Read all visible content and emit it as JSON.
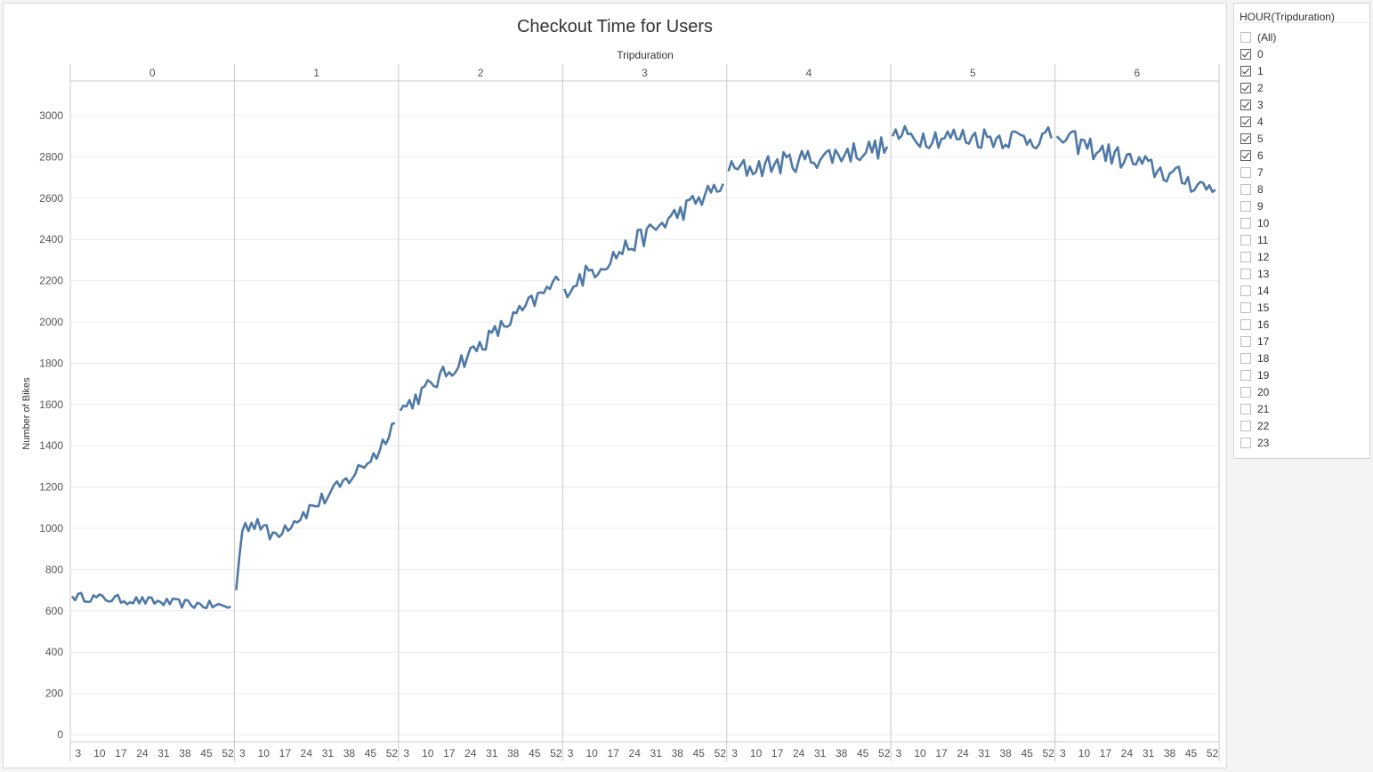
{
  "chart_data": {
    "type": "line",
    "title": "Checkout Time for Users",
    "column_header": "Tripduration",
    "ylabel": "Number of Bikes",
    "ylim": [
      0,
      3000
    ],
    "y_ticks": [
      0,
      200,
      400,
      600,
      800,
      1000,
      1200,
      1400,
      1600,
      1800,
      2000,
      2200,
      2400,
      2600,
      2800,
      3000
    ],
    "x_tick_labels": [
      "3",
      "10",
      "17",
      "24",
      "31",
      "38",
      "45",
      "52"
    ],
    "grid": true,
    "line_color": "#4e79a7",
    "panels": [
      {
        "label": "0",
        "start": 670,
        "end": 620,
        "noise": 22
      },
      {
        "label": "1",
        "start": 710,
        "end": 1510,
        "noise": 40,
        "anchors": [
          [
            1,
            700
          ],
          [
            3,
            1000
          ],
          [
            8,
            1040
          ],
          [
            12,
            960
          ],
          [
            20,
            1040
          ],
          [
            35,
            1200
          ],
          [
            48,
            1380
          ],
          [
            52,
            1510
          ],
          [
            60,
            1510
          ]
        ]
      },
      {
        "label": "2",
        "start": 1570,
        "end": 2200,
        "noise": 45
      },
      {
        "label": "3",
        "start": 2160,
        "end": 2670,
        "noise": 50
      },
      {
        "label": "4",
        "start": 2730,
        "end": 2850,
        "noise": 55
      },
      {
        "label": "5",
        "start": 2900,
        "end": 2890,
        "noise": 55
      },
      {
        "label": "6",
        "start": 2900,
        "end": 2640,
        "noise": 55
      }
    ]
  },
  "filter": {
    "title": "HOUR(Tripduration)",
    "items": [
      {
        "label": "(All)",
        "checked": false
      },
      {
        "label": "0",
        "checked": true
      },
      {
        "label": "1",
        "checked": true
      },
      {
        "label": "2",
        "checked": true
      },
      {
        "label": "3",
        "checked": true
      },
      {
        "label": "4",
        "checked": true
      },
      {
        "label": "5",
        "checked": true
      },
      {
        "label": "6",
        "checked": true
      },
      {
        "label": "7",
        "checked": false
      },
      {
        "label": "8",
        "checked": false
      },
      {
        "label": "9",
        "checked": false
      },
      {
        "label": "10",
        "checked": false
      },
      {
        "label": "11",
        "checked": false
      },
      {
        "label": "12",
        "checked": false
      },
      {
        "label": "13",
        "checked": false
      },
      {
        "label": "14",
        "checked": false
      },
      {
        "label": "15",
        "checked": false
      },
      {
        "label": "16",
        "checked": false
      },
      {
        "label": "17",
        "checked": false
      },
      {
        "label": "18",
        "checked": false
      },
      {
        "label": "19",
        "checked": false
      },
      {
        "label": "20",
        "checked": false
      },
      {
        "label": "21",
        "checked": false
      },
      {
        "label": "22",
        "checked": false
      },
      {
        "label": "23",
        "checked": false
      }
    ]
  }
}
